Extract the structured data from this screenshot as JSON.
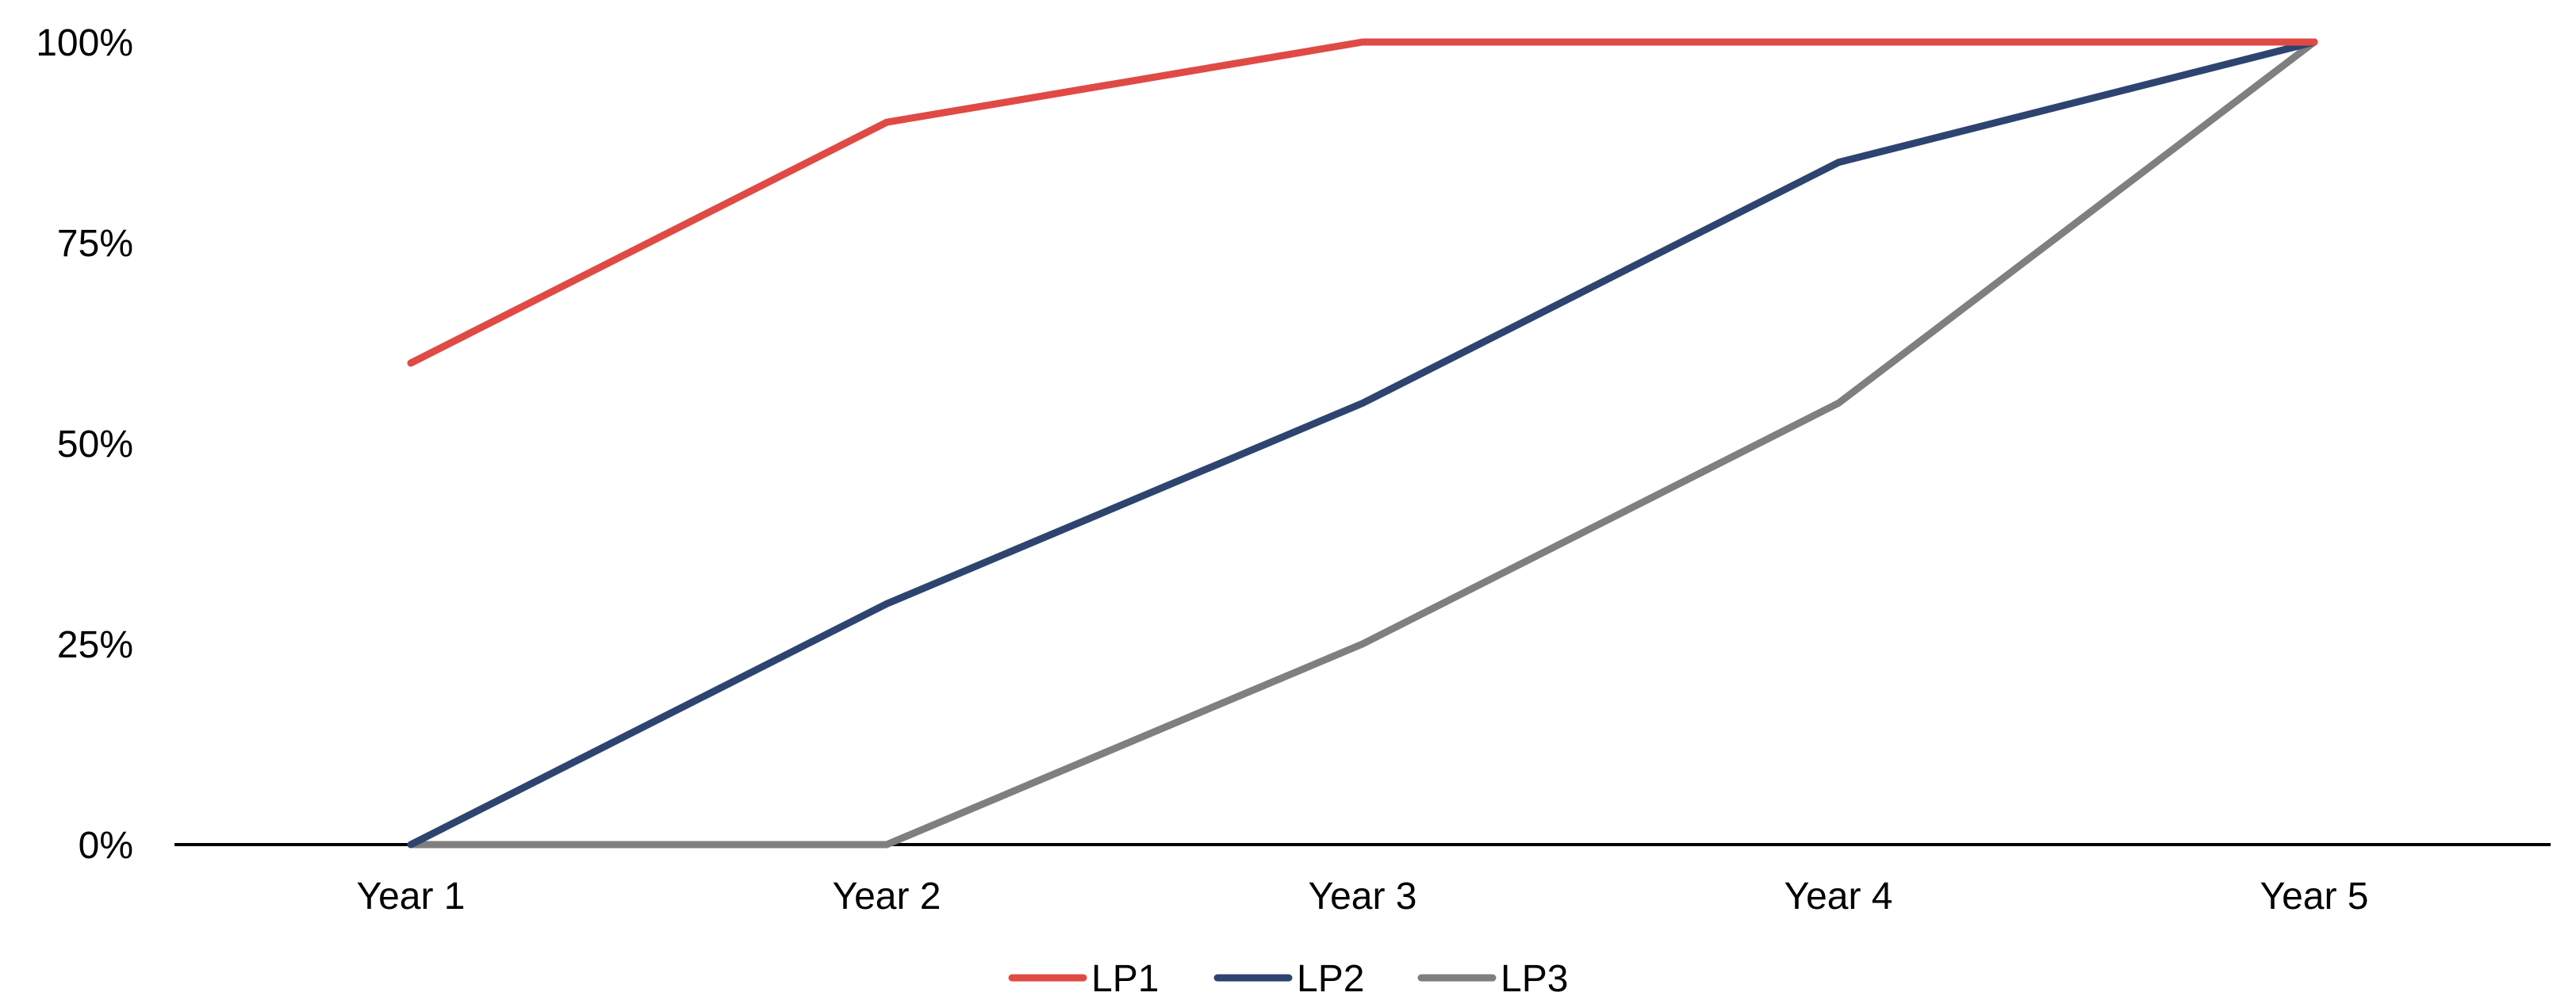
{
  "chart_data": {
    "type": "line",
    "title": "",
    "xlabel": "",
    "ylabel": "",
    "categories": [
      "Year 1",
      "Year 2",
      "Year 3",
      "Year 4",
      "Year 5"
    ],
    "ylim": [
      0,
      100
    ],
    "yticks": [
      0,
      25,
      50,
      75,
      100
    ],
    "ytick_labels": [
      "0%",
      "25%",
      "50%",
      "75%",
      "100%"
    ],
    "grid": false,
    "legend_position": "bottom-center",
    "series": [
      {
        "name": "LP1",
        "color": "#e04a45",
        "values": [
          60,
          90,
          100,
          100,
          100
        ]
      },
      {
        "name": "LP2",
        "color": "#2e4470",
        "values": [
          0,
          30,
          55,
          85,
          100
        ]
      },
      {
        "name": "LP3",
        "color": "#7f7f7f",
        "values": [
          0,
          0,
          25,
          55,
          100
        ]
      }
    ]
  }
}
